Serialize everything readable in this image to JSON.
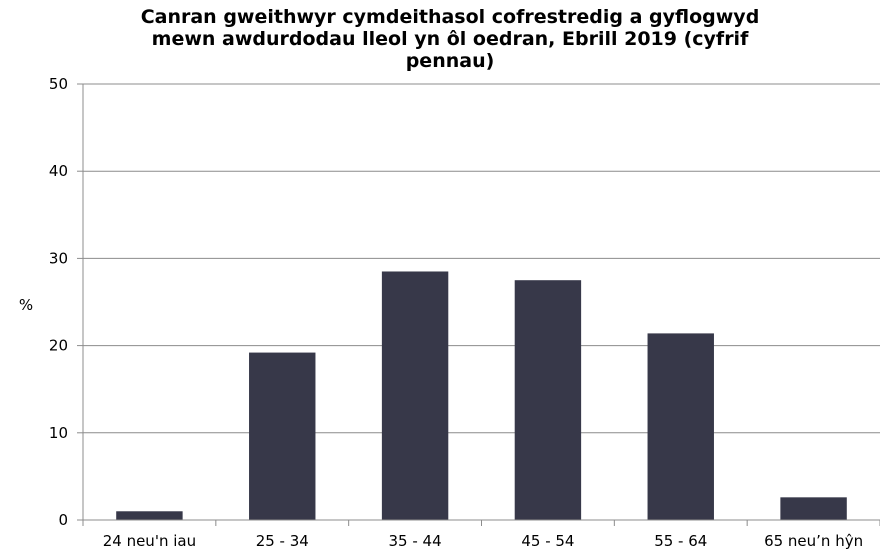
{
  "chart_data": {
    "type": "bar",
    "title_lines": [
      "Canran gweithwyr cymdeithasol cofrestredig a gyflogwyd",
      "mewn awdurdodau lleol yn ôl oedran, Ebrill 2019 (cyfrif",
      "pennau)"
    ],
    "categories": [
      "24 neu'n iau",
      "25 - 34",
      "35 - 44",
      "45 - 54",
      "55 - 64",
      "65 neu’n hŷn"
    ],
    "values": [
      1.0,
      19.2,
      28.5,
      27.5,
      21.4,
      2.6
    ],
    "xlabel": "",
    "ylabel": "%",
    "ylim": [
      0,
      50
    ],
    "yticks": [
      0,
      10,
      20,
      30,
      40,
      50
    ],
    "grid": true,
    "legend": "none",
    "bar_color": "#373849"
  }
}
